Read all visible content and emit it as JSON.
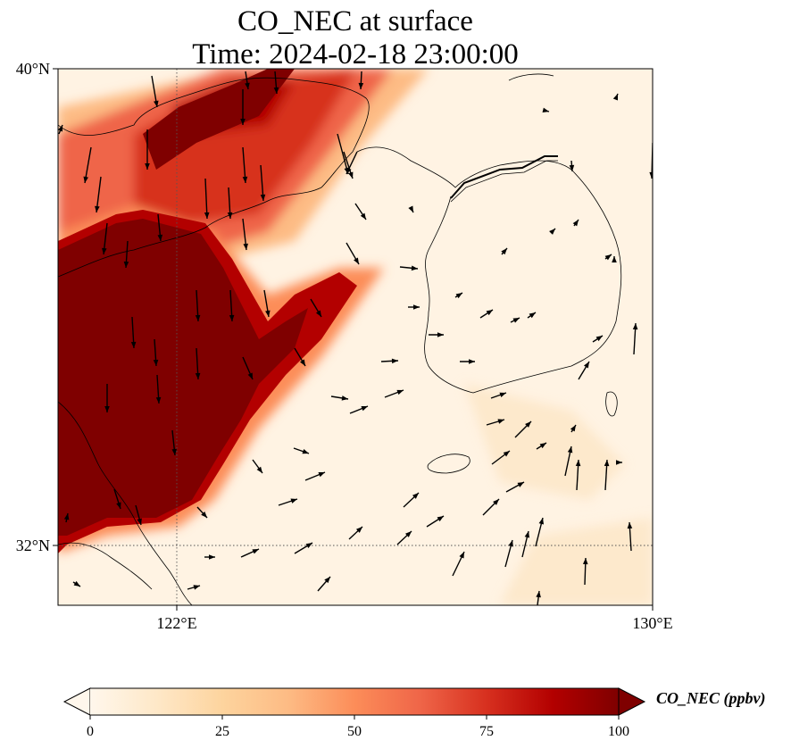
{
  "title": {
    "line1": "CO_NEC at surface",
    "line2": "Time: 2024-02-18 23:00:00"
  },
  "map": {
    "lon_range": [
      120,
      130
    ],
    "lat_range": [
      31,
      40
    ],
    "lon_ticks": [
      {
        "value": 122,
        "label": "122°E"
      },
      {
        "value": 130,
        "label": "130°E"
      }
    ],
    "lat_ticks": [
      {
        "value": 40,
        "label": "40°N"
      },
      {
        "value": 32,
        "label": "32°N"
      }
    ],
    "gridlines": "dotted",
    "colormap": "OrRd",
    "vectors": "wind arrows"
  },
  "colorbar": {
    "label": "CO_NEC (ppbv)",
    "min": 0,
    "max": 100,
    "extend": "both",
    "ticks": [
      {
        "value": 0,
        "label": "0"
      },
      {
        "value": 25,
        "label": "25"
      },
      {
        "value": 50,
        "label": "50"
      },
      {
        "value": 75,
        "label": "75"
      },
      {
        "value": 100,
        "label": "100"
      }
    ],
    "colors": [
      "#fff7ec",
      "#fee8c8",
      "#fdd49e",
      "#fdbb84",
      "#fc8d59",
      "#ef6548",
      "#d7301f",
      "#b30000",
      "#7f0000"
    ]
  }
}
